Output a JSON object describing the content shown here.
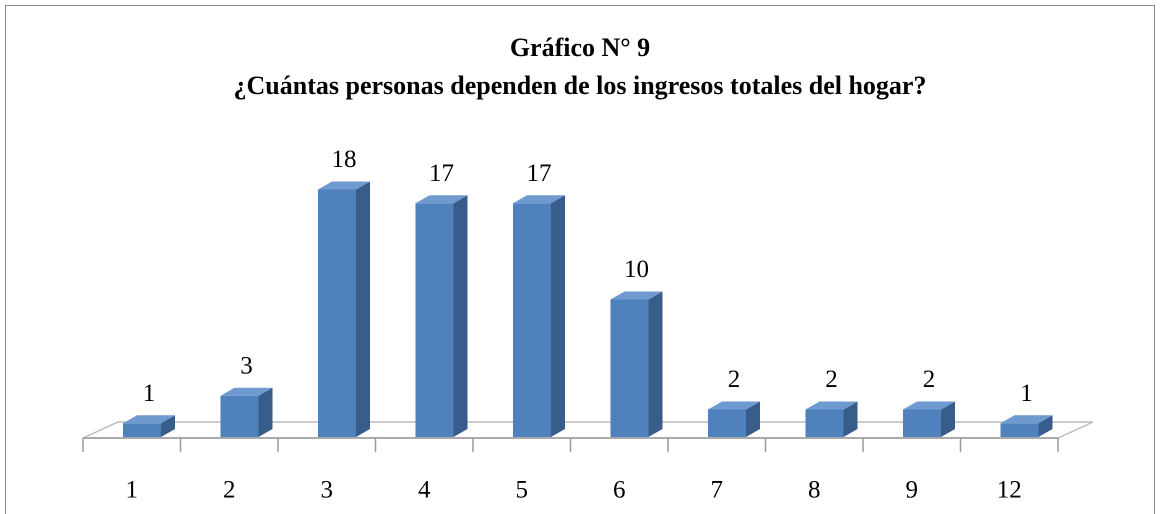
{
  "chart_data": {
    "type": "bar3d",
    "title": "Gráfico N° 9",
    "subtitle": "¿Cuántas personas dependen de los ingresos totales del hogar?",
    "categories": [
      "1",
      "2",
      "3",
      "4",
      "5",
      "6",
      "7",
      "8",
      "9",
      "12"
    ],
    "values": [
      1,
      3,
      18,
      17,
      17,
      10,
      2,
      2,
      2,
      1
    ],
    "color": "#4f81bd"
  }
}
